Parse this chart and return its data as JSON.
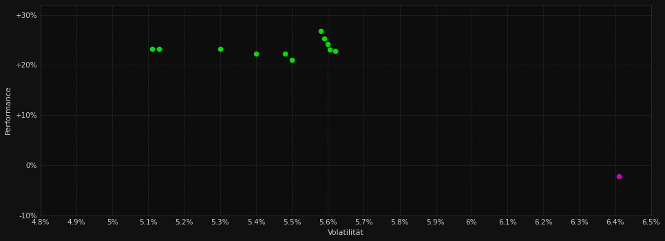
{
  "background_color": "#111111",
  "plot_bg_color": "#0d0d0d",
  "grid_color": "#2d2d2d",
  "text_color": "#cccccc",
  "xlabel": "Volatilität",
  "ylabel": "Performance",
  "xlim": [
    0.048,
    0.065
  ],
  "ylim": [
    -0.1,
    0.32
  ],
  "xtick_values": [
    0.048,
    0.049,
    0.05,
    0.051,
    0.052,
    0.053,
    0.054,
    0.055,
    0.056,
    0.057,
    0.058,
    0.059,
    0.06,
    0.061,
    0.062,
    0.063,
    0.064,
    0.065
  ],
  "xtick_labels": [
    "4.8%",
    "4.9%",
    "5%",
    "5.1%",
    "5.2%",
    "5.3%",
    "5.4%",
    "5.5%",
    "5.6%",
    "5.7%",
    "5.8%",
    "5.9%",
    "6%",
    "6.1%",
    "6.2%",
    "6.3%",
    "6.4%",
    "6.5%"
  ],
  "ytick_values": [
    -0.1,
    0.0,
    0.1,
    0.2,
    0.3
  ],
  "ytick_labels": [
    "-10%",
    "0%",
    "+10%",
    "+20%",
    "+30%"
  ],
  "green_points": [
    [
      0.0511,
      0.232
    ],
    [
      0.0513,
      0.232
    ],
    [
      0.053,
      0.232
    ],
    [
      0.054,
      0.222
    ],
    [
      0.0548,
      0.222
    ],
    [
      0.055,
      0.21
    ],
    [
      0.0558,
      0.268
    ],
    [
      0.0559,
      0.253
    ],
    [
      0.056,
      0.242
    ],
    [
      0.05605,
      0.23
    ],
    [
      0.0562,
      0.228
    ]
  ],
  "magenta_points": [
    [
      0.0641,
      -0.022
    ]
  ],
  "green_color": "#00dd00",
  "magenta_color": "#cc00bb",
  "marker_size": 30,
  "font_size_labels": 8,
  "font_size_ticks": 7.5
}
